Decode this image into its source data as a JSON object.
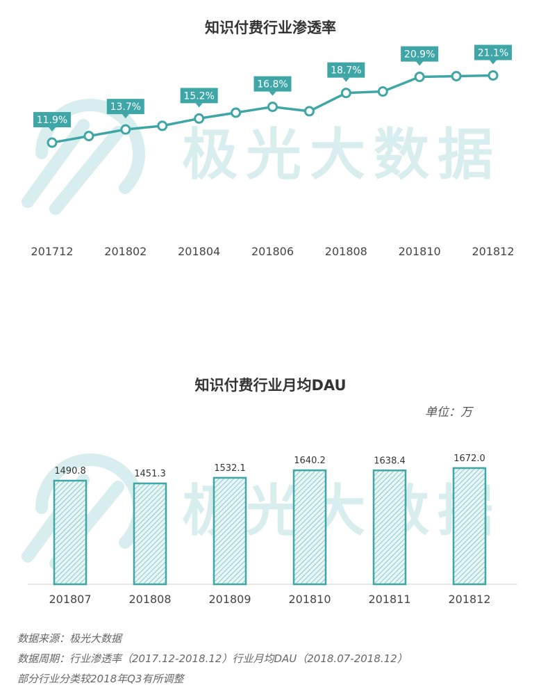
{
  "watermark": "极光大数据",
  "notes": [
    "数据来源：极光大数据",
    "数据周期：行业渗透率（2017.12-2018.12）行业月均DAU（2018.07-2018.12）",
    "部分行业分类较2018年Q3有所调整"
  ],
  "colors": {
    "accent": "#3fa6a8",
    "watermark": "#d8eeee"
  },
  "chart_data": [
    {
      "type": "line",
      "title": "知识付费行业渗透率",
      "x": [
        "201712",
        "201801",
        "201802",
        "201803",
        "201804",
        "201805",
        "201806",
        "201807",
        "201808",
        "201809",
        "201810",
        "201811",
        "201812"
      ],
      "x_tick_labels": [
        "201712",
        "201802",
        "201804",
        "201806",
        "201808",
        "201810",
        "201812"
      ],
      "values": [
        11.9,
        12.8,
        13.7,
        14.2,
        15.2,
        16.0,
        16.8,
        16.2,
        18.7,
        18.9,
        20.9,
        21.0,
        21.1
      ],
      "data_labels": {
        "201712": "11.9%",
        "201802": "13.7%",
        "201804": "15.2%",
        "201806": "16.8%",
        "201808": "18.7%",
        "201810": "20.9%",
        "201812": "21.1%"
      },
      "ylim": [
        10,
        22
      ],
      "grid": false
    },
    {
      "type": "bar",
      "title": "知识付费行业月均DAU",
      "unit_label": "单位：万",
      "categories": [
        "201807",
        "201808",
        "201809",
        "201810",
        "201811",
        "201812"
      ],
      "values": [
        1490.8,
        1451.3,
        1532.1,
        1640.2,
        1638.4,
        1672.0
      ],
      "value_labels": [
        "1490.8",
        "1451.3",
        "1532.1",
        "1640.2",
        "1638.4",
        "1672.0"
      ],
      "ylim": [
        0,
        1800
      ],
      "grid": false
    }
  ]
}
